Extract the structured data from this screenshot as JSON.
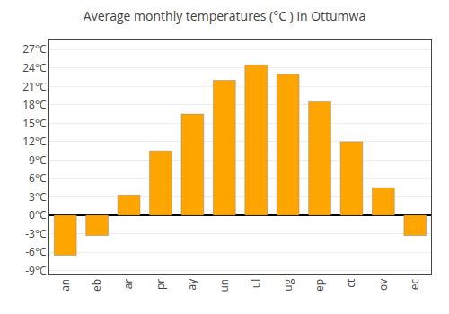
{
  "chart_data": {
    "type": "bar",
    "title": "Average monthly temperatures (°C ) in Ottumwa",
    "categories": [
      "an",
      "eb",
      "ar",
      "pr",
      "ay",
      "un",
      "ul",
      "ug",
      "ep",
      "ct",
      "ov",
      "ec"
    ],
    "values": [
      -6.5,
      -3.3,
      3.3,
      10.5,
      16.5,
      22.0,
      24.5,
      23.0,
      18.5,
      12.0,
      4.5,
      -3.3
    ],
    "color": "#FFA500",
    "ylim": [
      -9.5,
      28.5
    ],
    "yticks": [
      {
        "value": -9,
        "label": "-9°C"
      },
      {
        "value": -6,
        "label": "-6°C"
      },
      {
        "value": -3,
        "label": "-3°C"
      },
      {
        "value": 0,
        "label": "0°C"
      },
      {
        "value": 3,
        "label": "3°C"
      },
      {
        "value": 6,
        "label": "6°C"
      },
      {
        "value": 9,
        "label": "9°C"
      },
      {
        "value": 12,
        "label": "12°C"
      },
      {
        "value": 15,
        "label": "15°C"
      },
      {
        "value": 18,
        "label": "18°C"
      },
      {
        "value": 21,
        "label": "21°C"
      },
      {
        "value": 24,
        "label": "24°C"
      },
      {
        "value": 27,
        "label": "27°C"
      }
    ],
    "grid": true
  }
}
